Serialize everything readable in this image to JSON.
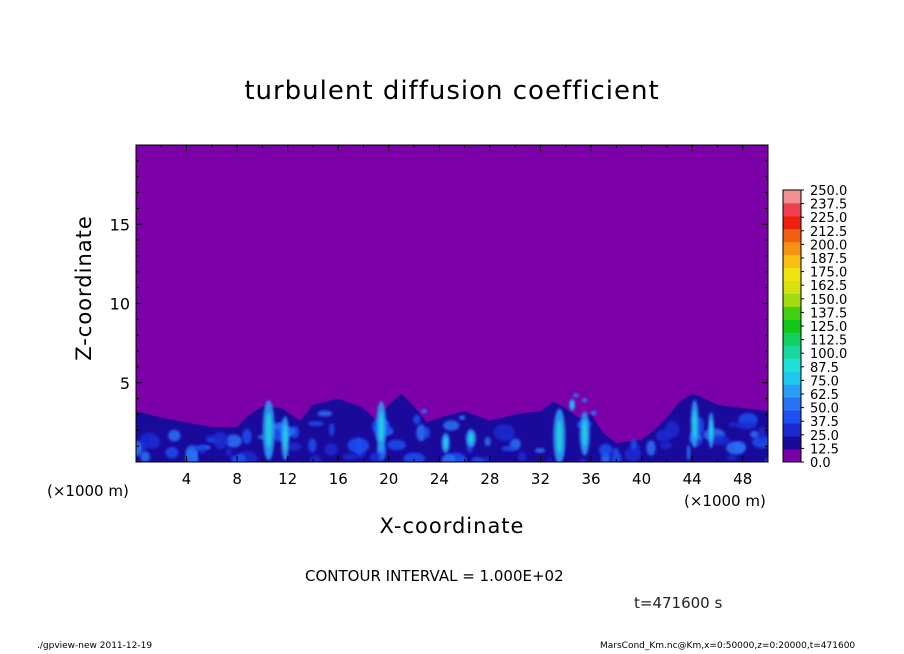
{
  "chart_data": {
    "type": "heatmap",
    "title": "turbulent diffusion coefficient",
    "xlabel": "X-coordinate",
    "ylabel": "Z-coordinate",
    "x_unit": "(×1000 m)",
    "xlim": [
      0,
      50
    ],
    "ylim": [
      0,
      20
    ],
    "x_ticks": [
      4,
      8,
      12,
      16,
      20,
      24,
      28,
      32,
      36,
      40,
      44,
      48
    ],
    "y_ticks": [
      5,
      10,
      15
    ],
    "background_value": 0.0,
    "colorbar": {
      "levels": [
        "0.0",
        "12.5",
        "25.0",
        "37.5",
        "50.0",
        "62.5",
        "75.0",
        "87.5",
        "100.0",
        "112.5",
        "125.0",
        "137.5",
        "150.0",
        "162.5",
        "175.0",
        "187.5",
        "200.0",
        "212.5",
        "225.0",
        "237.5",
        "250.0"
      ],
      "colors": [
        "#7b00a8",
        "#1a0a9c",
        "#1a2ad0",
        "#1e4ff0",
        "#2a72f5",
        "#2a9ef5",
        "#20c8f0",
        "#1ee0d8",
        "#18d8a0",
        "#10d060",
        "#10c818",
        "#40d010",
        "#a0dc10",
        "#d8e010",
        "#f0e410",
        "#f8c010",
        "#f89010",
        "#f06010",
        "#f02010",
        "#f04050",
        "#f09090"
      ]
    }
  },
  "labels": {
    "contour_interval": "CONTOUR INTERVAL = 1.000E+02",
    "time": "t=471600 s",
    "footer_left": "./gpview-new   2011-12-19",
    "footer_right": "MarsCond_Km.nc@Km,x=0:50000,z=0:20000,t=471600"
  }
}
